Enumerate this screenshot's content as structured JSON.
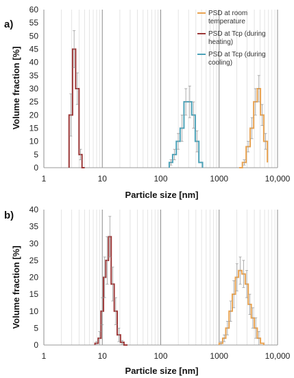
{
  "chart_data": [
    {
      "panel_label": "a)",
      "type": "line",
      "xscale": "log",
      "xlim": [
        1,
        10000
      ],
      "ylim": [
        0,
        60
      ],
      "y_ticks": [
        0,
        5,
        10,
        15,
        20,
        25,
        30,
        35,
        40,
        45,
        50,
        55,
        60
      ],
      "x_ticks": [
        1,
        10,
        100,
        1000,
        10000
      ],
      "x_tick_labels": [
        "1",
        "10",
        "100",
        "1000",
        "10,000"
      ],
      "xlabel": "Particle size [nm]",
      "ylabel": "Volume fraction [%]",
      "grid": "log-minor vertical",
      "legend_position": "top-right",
      "series": [
        {
          "name": "PSD at room temperature",
          "color": "#E8A250",
          "bins": [
            2200,
            2500,
            2900,
            3400,
            3900,
            4500,
            5100,
            5800,
            6700
          ],
          "values": [
            0,
            2,
            8,
            15,
            25,
            30,
            20,
            10,
            2
          ],
          "errors": [
            0,
            1,
            2,
            4,
            5,
            5,
            4,
            3,
            0
          ]
        },
        {
          "name": "PSD at Tcp (during heating)",
          "color": "#9C3838",
          "bins": [
            2.7,
            3.1,
            3.5,
            4.0,
            4.5,
            5.0
          ],
          "values": [
            20,
            45,
            30,
            5,
            0
          ],
          "errors": [
            8,
            7,
            6,
            2,
            0
          ]
        },
        {
          "name": "PSD at Tcp (during cooling)",
          "color": "#4CA2B8",
          "bins": [
            140,
            160,
            185,
            215,
            250,
            290,
            340,
            390,
            450,
            520
          ],
          "values": [
            2,
            5,
            10,
            15,
            25,
            25,
            20,
            10,
            2
          ],
          "errors": [
            1,
            2,
            3,
            5,
            5,
            6,
            5,
            4,
            0
          ]
        }
      ]
    },
    {
      "panel_label": "b)",
      "type": "line",
      "xscale": "log",
      "xlim": [
        1,
        10000
      ],
      "ylim": [
        0,
        40
      ],
      "y_ticks": [
        0,
        5,
        10,
        15,
        20,
        25,
        30,
        35,
        40
      ],
      "x_ticks": [
        1,
        10,
        100,
        1000,
        10000
      ],
      "x_tick_labels": [
        "1",
        "10",
        "100",
        "1000",
        "10,000"
      ],
      "xlabel": "Particle size [nm]",
      "ylabel": "Volume fraction [%]",
      "grid": "log-minor vertical",
      "series": [
        {
          "color": "#9C3838",
          "bins": [
            7.5,
            8.5,
            9.5,
            10.5,
            11.5,
            12.8,
            14.2,
            16,
            18,
            20.5,
            23.5,
            27
          ],
          "values": [
            0.5,
            2,
            10,
            20,
            25,
            32,
            18,
            10,
            3,
            0.8,
            0
          ],
          "errors": [
            0.5,
            2,
            4,
            6,
            7,
            6,
            5,
            4,
            2,
            0.5,
            0
          ]
        },
        {
          "color": "#E8A250",
          "bins": [
            1000,
            1150,
            1300,
            1480,
            1680,
            1900,
            2150,
            2450,
            2800,
            3150,
            3550,
            4000,
            4500,
            5100,
            5800
          ],
          "values": [
            0.5,
            2,
            5,
            10,
            15,
            20,
            22,
            21,
            18,
            12,
            8,
            5,
            2,
            0.5
          ],
          "errors": [
            0.5,
            1,
            2,
            3,
            4,
            4,
            4,
            4,
            4,
            3,
            3,
            3,
            2,
            0
          ]
        }
      ]
    }
  ]
}
